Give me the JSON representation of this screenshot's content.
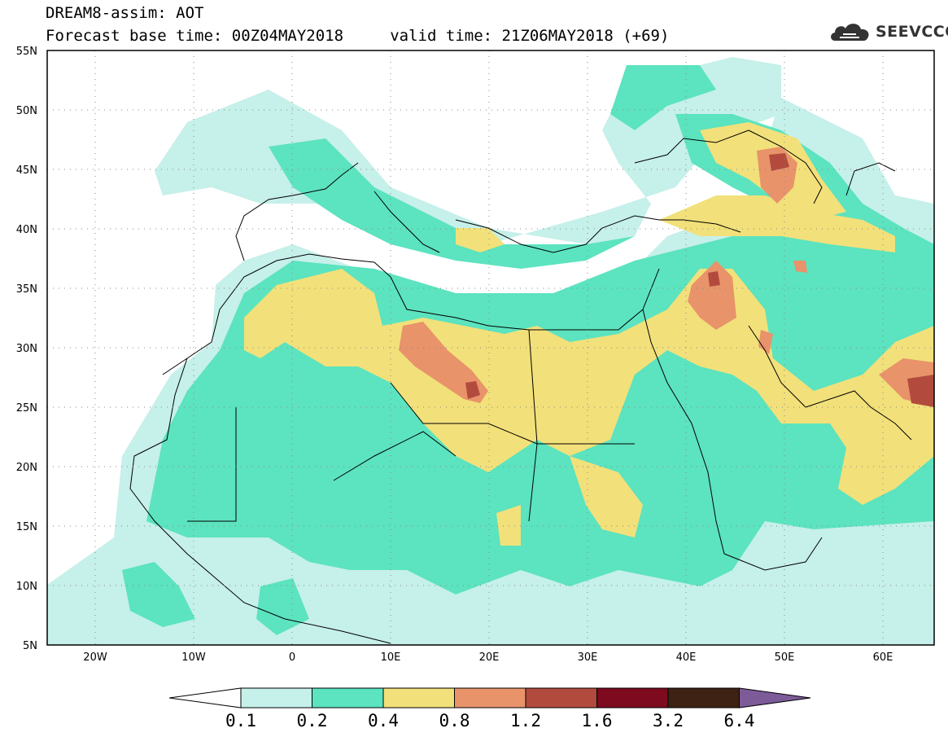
{
  "header": {
    "title_line1": "DREAM8-assim: AOT",
    "title_line2": "Forecast base time: 00Z04MAY2018     valid time: 21Z06MAY2018 (+69)",
    "logo_text": "SEEVCCC",
    "logo_icon": "cloud-icon"
  },
  "map": {
    "lat_labels": [
      "55N",
      "50N",
      "45N",
      "40N",
      "35N",
      "30N",
      "25N",
      "20N",
      "15N",
      "10N",
      "5N"
    ],
    "lon_labels": [
      "20W",
      "10W",
      "0",
      "10E",
      "20E",
      "30E",
      "40E",
      "50E",
      "60E"
    ],
    "lon_range": [
      -25,
      65
    ],
    "lat_range": [
      5,
      55
    ],
    "grid": "dotted"
  },
  "colorbar": {
    "labels": [
      "0.1",
      "0.2",
      "0.4",
      "0.8",
      "1.2",
      "1.6",
      "3.2",
      "6.4"
    ],
    "colors": [
      "#c6f0ea",
      "#5ce3bf",
      "#f2e07a",
      "#e8936a",
      "#b24b3e",
      "#7d0a1e",
      "#3e2314",
      "#7d5b98"
    ]
  }
}
